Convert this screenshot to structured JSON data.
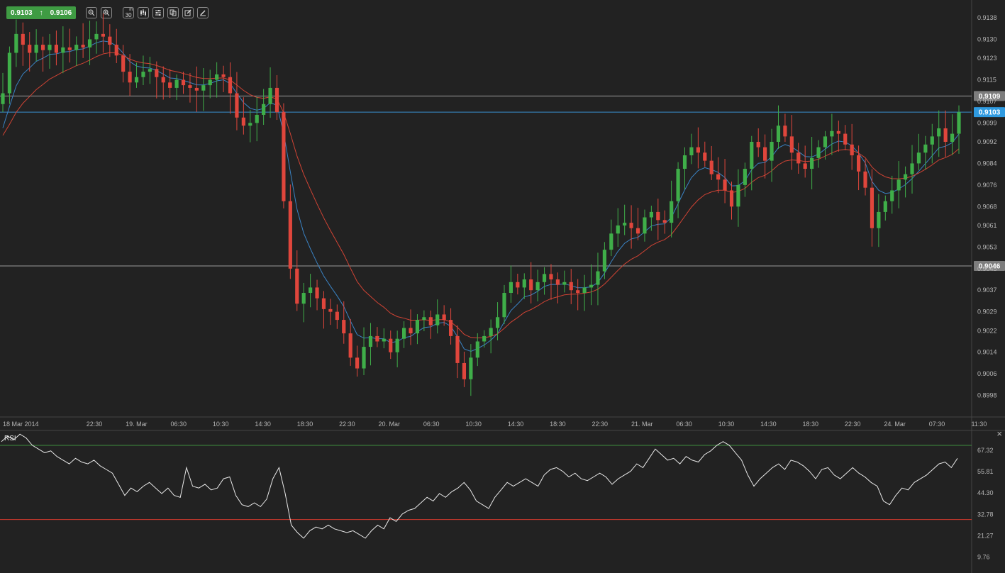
{
  "toolbar": {
    "bid": "0.9103",
    "ask": "0.9106",
    "timeframe": "30",
    "timeframe_unit": "m",
    "icons": [
      "zoom-out-icon",
      "zoom-in-icon",
      "timeframe-button",
      "chart-type-icon",
      "indicators-icon",
      "duplicate-icon",
      "edit-icon",
      "draw-icon"
    ]
  },
  "chart_data": [
    {
      "type": "candlestick",
      "instrument_axis_ticks": [
        "0.9138",
        "0.9130",
        "0.9123",
        "0.9115",
        "0.9107",
        "0.9099",
        "0.9092",
        "0.9084",
        "0.9076",
        "0.9068",
        "0.9061",
        "0.9053",
        "0.9045",
        "0.9037",
        "0.9029",
        "0.9022",
        "0.9014",
        "0.9006",
        "0.8998"
      ],
      "y_tick_values": [
        0.9138,
        0.913,
        0.9123,
        0.9115,
        0.9107,
        0.9099,
        0.9092,
        0.9084,
        0.9076,
        0.9068,
        0.9061,
        0.9053,
        0.9045,
        0.9037,
        0.9029,
        0.9022,
        0.9014,
        0.9006,
        0.8998
      ],
      "ylim": [
        0.899,
        0.9143
      ],
      "x_tick_labels": [
        "18 Mar 2014",
        "22:30",
        "19. Mar",
        "06:30",
        "10:30",
        "14:30",
        "18:30",
        "22:30",
        "20. Mar",
        "06:30",
        "10:30",
        "14:30",
        "18:30",
        "22:30",
        "21. Mar",
        "06:30",
        "10:30",
        "14:30",
        "18:30",
        "22:30",
        "24. Mar",
        "07:30",
        "11:30"
      ],
      "horizontal_levels": [
        {
          "value": 0.9109,
          "label": "0.9109",
          "color": "#9a9a9a"
        },
        {
          "value": 0.9103,
          "label": "0.9103",
          "color": "#3a8fd0"
        },
        {
          "value": 0.9046,
          "label": "0.9046",
          "color": "#9a9a9a"
        }
      ],
      "colors": {
        "up": "#3fae49",
        "down": "#e0463c",
        "ma_fast": "#3a83c4",
        "ma_slow": "#d04334"
      },
      "closes": [
        0.911,
        0.9125,
        0.9132,
        0.9128,
        0.9125,
        0.9128,
        0.9126,
        0.9128,
        0.9125,
        0.9127,
        0.9126,
        0.9128,
        0.9127,
        0.913,
        0.9132,
        0.9131,
        0.9128,
        0.9124,
        0.9118,
        0.9114,
        0.9116,
        0.9118,
        0.9119,
        0.9116,
        0.9114,
        0.9112,
        0.9115,
        0.9113,
        0.9112,
        0.9111,
        0.9113,
        0.9115,
        0.9117,
        0.9116,
        0.911,
        0.9101,
        0.9098,
        0.9099,
        0.9102,
        0.9106,
        0.9112,
        0.9103,
        0.907,
        0.9045,
        0.9032,
        0.9036,
        0.9038,
        0.9034,
        0.903,
        0.9029,
        0.9026,
        0.9021,
        0.9012,
        0.9008,
        0.9016,
        0.902,
        0.9018,
        0.9019,
        0.9014,
        0.9019,
        0.9023,
        0.9021,
        0.9026,
        0.9027,
        0.9024,
        0.9028,
        0.9026,
        0.902,
        0.901,
        0.9004,
        0.9012,
        0.9018,
        0.902,
        0.9023,
        0.9027,
        0.9036,
        0.904,
        0.9038,
        0.9041,
        0.9037,
        0.904,
        0.9043,
        0.9041,
        0.9039,
        0.904,
        0.9037,
        0.9036,
        0.9038,
        0.9039,
        0.9044,
        0.9052,
        0.9058,
        0.9061,
        0.9062,
        0.906,
        0.9058,
        0.9064,
        0.9066,
        0.9063,
        0.9062,
        0.907,
        0.9082,
        0.9087,
        0.909,
        0.9088,
        0.9085,
        0.908,
        0.9078,
        0.9074,
        0.9068,
        0.9076,
        0.9082,
        0.9092,
        0.909,
        0.9085,
        0.9092,
        0.9098,
        0.9094,
        0.9088,
        0.9084,
        0.9082,
        0.9086,
        0.909,
        0.9094,
        0.9096,
        0.9095,
        0.9091,
        0.9087,
        0.9081,
        0.9075,
        0.906,
        0.9066,
        0.907,
        0.9074,
        0.9078,
        0.908,
        0.9084,
        0.9088,
        0.9091,
        0.9094,
        0.9097,
        0.9092,
        0.9095,
        0.9103
      ]
    },
    {
      "type": "line",
      "name": "RSI",
      "y_tick_labels": [
        "67.32",
        "55.81",
        "44.30",
        "32.78",
        "21.27",
        "9.76"
      ],
      "y_tick_values": [
        67.32,
        55.81,
        44.3,
        32.78,
        21.27,
        9.76
      ],
      "ylim": [
        2.0,
        78.0
      ],
      "levels": [
        {
          "value": 70,
          "color": "#3e8f3e"
        },
        {
          "value": 30,
          "color": "#d03a2e"
        }
      ],
      "values": [
        72,
        75,
        73,
        76,
        74,
        70,
        68,
        66,
        67,
        64,
        62,
        60,
        63,
        61,
        60,
        62,
        59,
        57,
        55,
        49,
        43,
        47,
        45,
        48,
        50,
        47,
        44,
        47,
        43,
        42,
        58,
        48,
        47,
        49,
        46,
        47,
        52,
        53,
        43,
        38,
        37,
        39,
        37,
        41,
        52,
        58,
        44,
        27,
        23,
        20,
        24,
        26,
        25,
        27,
        25,
        24,
        23,
        24,
        22,
        20,
        24,
        27,
        25,
        31,
        29,
        33,
        35,
        36,
        39,
        42,
        40,
        44,
        42,
        45,
        47,
        50,
        46,
        40,
        38,
        36,
        42,
        46,
        50,
        48,
        50,
        52,
        50,
        48,
        54,
        57,
        58,
        56,
        53,
        55,
        52,
        51,
        53,
        55,
        53,
        49,
        52,
        54,
        56,
        60,
        58,
        63,
        68,
        65,
        62,
        63,
        60,
        64,
        62,
        61,
        65,
        67,
        70,
        72,
        70,
        66,
        62,
        54,
        48,
        52,
        55,
        58,
        60,
        57,
        62,
        61,
        59,
        56,
        52,
        57,
        58,
        54,
        52,
        55,
        58,
        55,
        53,
        50,
        48,
        40,
        38,
        43,
        47,
        46,
        50,
        52,
        54,
        57,
        60,
        61,
        58,
        63
      ]
    }
  ],
  "rsi_panel": {
    "title": "RSI",
    "close": "×"
  }
}
